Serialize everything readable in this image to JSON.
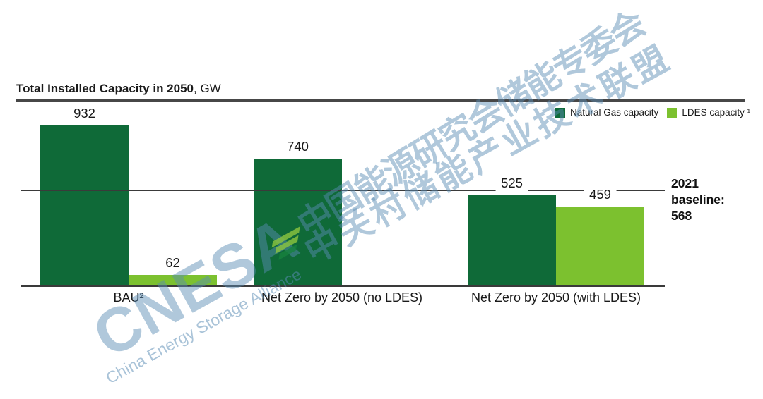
{
  "title": {
    "bold": "Total Installed Capacity in 2050",
    "suffix": ", GW"
  },
  "legend": {
    "items": [
      {
        "label": "Natural Gas capacity",
        "color": "#0f6a38"
      },
      {
        "label": "LDES capacity ¹",
        "color": "#7cc12f"
      }
    ]
  },
  "chart_data": {
    "type": "bar",
    "title": "Total Installed Capacity in 2050, GW",
    "categories": [
      "BAU²",
      "Net Zero by 2050 (no LDES)",
      "Net Zero by 2050 (with LDES)"
    ],
    "series": [
      {
        "name": "Natural Gas capacity",
        "color": "#0f6a38",
        "values": [
          932,
          740,
          525
        ]
      },
      {
        "name": "LDES capacity",
        "color": "#7cc12f",
        "values": [
          62,
          null,
          459
        ]
      }
    ],
    "ylim": [
      0,
      1000
    ],
    "grid": false,
    "legend_position": "top-right",
    "baseline": {
      "value": 568,
      "label_lines": [
        "2021",
        "baseline:",
        "568"
      ]
    }
  },
  "watermark": {
    "cn_line1": "中国能源研究会储能专委会",
    "cn_line2": "中关村储能产业技术联盟",
    "acronym": "CNESA",
    "subtitle": "China Energy Storage Alliance",
    "color": "#5a8cb4",
    "stripe_colors": [
      "#8dc63f",
      "#8dc63f",
      "#17823e"
    ]
  }
}
